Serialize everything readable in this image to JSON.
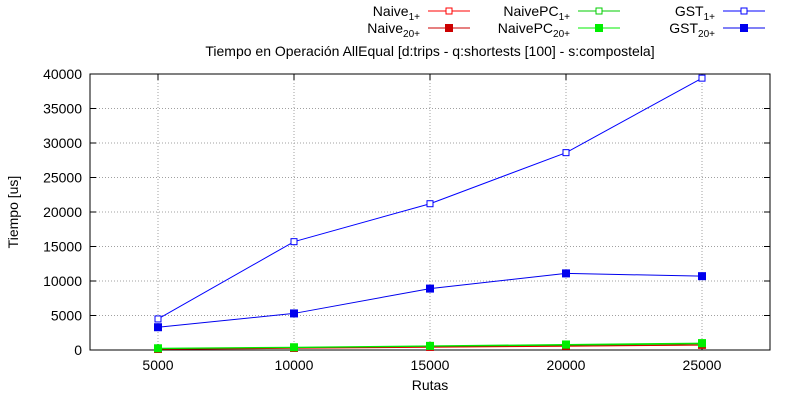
{
  "chart_data": {
    "type": "line",
    "title": "Tiempo en Operación AllEqual [d:trips - q:shortests [100] - s:compostela]",
    "xlabel": "Rutas",
    "ylabel": "Tiempo [us]",
    "x": [
      5000,
      10000,
      15000,
      20000,
      25000
    ],
    "xticks": [
      "5000",
      "10000",
      "15000",
      "20000",
      "25000"
    ],
    "yticks": [
      "0",
      "5000",
      "10000",
      "15000",
      "20000",
      "25000",
      "30000",
      "35000",
      "40000"
    ],
    "xlim": [
      2500,
      27500
    ],
    "ylim": [
      0,
      40000
    ],
    "grid": true,
    "legend_position": "top-right",
    "series": [
      {
        "name": "Naive",
        "sub": "1+",
        "color": "#ff0000",
        "marker": "open-square",
        "values": [
          100,
          250,
          400,
          550,
          700
        ]
      },
      {
        "name": "Naive",
        "sub": "20+",
        "color": "#cc0000",
        "marker": "filled-square",
        "values": [
          150,
          300,
          450,
          600,
          750
        ]
      },
      {
        "name": "NaivePC",
        "sub": "1+",
        "color": "#00cc00",
        "marker": "open-square",
        "values": [
          200,
          350,
          550,
          700,
          900
        ]
      },
      {
        "name": "NaivePC",
        "sub": "20+",
        "color": "#00ee00",
        "marker": "filled-square",
        "values": [
          250,
          400,
          600,
          800,
          1000
        ]
      },
      {
        "name": "GST",
        "sub": "1+",
        "color": "#0000ff",
        "marker": "open-square",
        "values": [
          4500,
          15700,
          21200,
          28600,
          39400
        ]
      },
      {
        "name": "GST",
        "sub": "20+",
        "color": "#0000ee",
        "marker": "filled-square",
        "values": [
          3300,
          5300,
          8900,
          11100,
          10700
        ]
      }
    ]
  }
}
